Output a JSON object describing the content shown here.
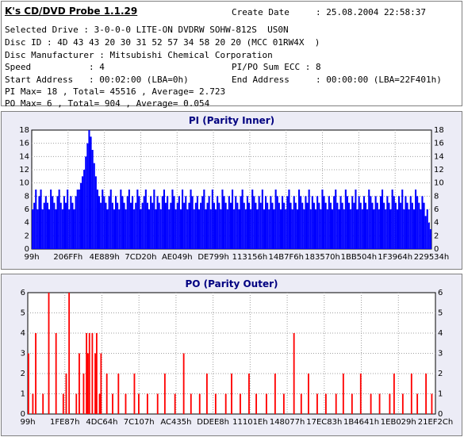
{
  "app": {
    "title": "K's CD/DVD Probe 1.1.29"
  },
  "info": {
    "create_date": "Create Date     : 25.08.2004 22:58:37",
    "drive": "Selected Drive : 3-0-0-0 LITE-ON DVDRW SOHW-812S  US0N",
    "disc_id": "Disc ID : 4D 43 43 20 30 31 52 57 34 58 20 20 (MCC 01RW4X  )",
    "manufacturer": "Disc Manufacturer : Mitsubishi Chemical Corporation",
    "speed": "Speed           : 4",
    "sum_ecc": "PI/PO Sum ECC : 8",
    "start_address": "Start Address   : 00:02:00 (LBA=0h)",
    "end_address": "End Address     : 00:00:00 (LBA=22F401h)",
    "pi_summary": "PI Max= 18 , Total= 45516 , Average= 2.723",
    "po_summary": "PO Max= 6 , Total= 904 , Average= 0.054"
  },
  "colors": {
    "pi": "#0000ff",
    "po": "#ff0000",
    "panel": "#ececf6",
    "title": "#000080"
  },
  "chart_data": [
    {
      "type": "bar",
      "title": "PI (Parity Inner)",
      "ylim": [
        0,
        18
      ],
      "yticks": [
        0,
        2,
        4,
        6,
        8,
        10,
        12,
        14,
        16,
        18
      ],
      "xticks": [
        "99h",
        "206FFh",
        "4E889h",
        "7CD20h",
        "AE049h",
        "DE799h",
        "113156h",
        "14B7F6h",
        "183570h",
        "1BB504h",
        "1F3964h",
        "229534h"
      ],
      "grid": true,
      "series": [
        {
          "values": [
            6,
            7,
            9,
            6,
            8,
            9,
            6,
            7,
            8,
            7,
            6,
            9,
            8,
            7,
            6,
            8,
            9,
            7,
            6,
            8,
            7,
            9,
            6,
            8,
            7,
            6,
            8,
            9,
            9,
            10,
            11,
            12,
            14,
            16,
            18,
            17,
            15,
            13,
            11,
            9,
            8,
            7,
            9,
            8,
            7,
            6,
            8,
            9,
            7,
            6,
            8,
            7,
            6,
            9,
            8,
            7,
            6,
            8,
            9,
            7,
            8,
            6,
            7,
            9,
            8,
            6,
            7,
            8,
            9,
            7,
            6,
            8,
            7,
            9,
            6,
            8,
            7,
            6,
            8,
            9,
            7,
            8,
            6,
            7,
            9,
            8,
            6,
            7,
            8,
            6,
            9,
            7,
            8,
            6,
            7,
            9,
            8,
            6,
            7,
            8,
            6,
            7,
            8,
            9,
            6,
            7,
            8,
            6,
            9,
            7,
            6,
            8,
            7,
            6,
            9,
            8,
            7,
            6,
            8,
            7,
            9,
            6,
            8,
            7,
            6,
            8,
            9,
            7,
            6,
            8,
            7,
            6,
            9,
            8,
            7,
            6,
            8,
            7,
            9,
            6,
            8,
            7,
            6,
            8,
            7,
            6,
            9,
            8,
            7,
            6,
            8,
            7,
            6,
            8,
            9,
            7,
            6,
            8,
            7,
            6,
            9,
            8,
            7,
            6,
            8,
            7,
            9,
            6,
            8,
            7,
            6,
            8,
            7,
            6,
            9,
            8,
            7,
            6,
            8,
            7,
            6,
            8,
            9,
            7,
            6,
            8,
            7,
            6,
            9,
            8,
            7,
            6,
            8,
            7,
            9,
            6,
            8,
            7,
            6,
            8,
            7,
            6,
            9,
            8,
            7,
            6,
            8,
            7,
            6,
            8,
            9,
            7,
            6,
            8,
            7,
            6,
            9,
            8,
            7,
            6,
            8,
            7,
            9,
            6,
            8,
            7,
            6,
            8,
            7,
            6,
            9,
            8,
            7,
            6,
            8,
            7,
            5,
            6,
            4,
            3
          ]
        }
      ]
    },
    {
      "type": "bar",
      "title": "PO (Parity Outer)",
      "ylim": [
        0,
        6
      ],
      "yticks": [
        0,
        1,
        2,
        3,
        4,
        5,
        6
      ],
      "xticks": [
        "99h",
        "1FE87h",
        "4DC64h",
        "7C107h",
        "AC435h",
        "DDEE8h",
        "11101Eh",
        "148077h",
        "17EC83h",
        "1B4641h",
        "1EB029h",
        "21EF2Ch"
      ],
      "grid": true,
      "series": [
        {
          "values": [
            3,
            0,
            0,
            1,
            0,
            4,
            0,
            0,
            0,
            0,
            1,
            0,
            0,
            0,
            6,
            0,
            0,
            0,
            0,
            4,
            0,
            0,
            0,
            0,
            1,
            0,
            2,
            0,
            6,
            0,
            0,
            0,
            0,
            1,
            0,
            3,
            0,
            0,
            2,
            0,
            4,
            3,
            4,
            0,
            4,
            0,
            3,
            4,
            0,
            1,
            3,
            0,
            0,
            0,
            2,
            0,
            0,
            0,
            1,
            0,
            0,
            0,
            2,
            0,
            0,
            0,
            0,
            1,
            0,
            0,
            0,
            0,
            0,
            2,
            0,
            0,
            1,
            0,
            0,
            0,
            0,
            0,
            1,
            0,
            0,
            0,
            0,
            0,
            0,
            1,
            0,
            0,
            0,
            0,
            2,
            0,
            0,
            0,
            0,
            0,
            0,
            1,
            0,
            0,
            0,
            0,
            0,
            3,
            0,
            0,
            0,
            0,
            1,
            0,
            0,
            0,
            0,
            0,
            1,
            0,
            0,
            0,
            0,
            2,
            0,
            0,
            0,
            0,
            0,
            1,
            0,
            0,
            0,
            0,
            0,
            0,
            1,
            0,
            0,
            0,
            2,
            0,
            0,
            0,
            0,
            0,
            1,
            0,
            0,
            0,
            0,
            0,
            2,
            0,
            0,
            0,
            0,
            1,
            0,
            0,
            0,
            0,
            0,
            0,
            1,
            0,
            0,
            0,
            0,
            0,
            2,
            0,
            0,
            0,
            0,
            0,
            1,
            0,
            0,
            0,
            0,
            0,
            0,
            4,
            0,
            0,
            0,
            0,
            1,
            0,
            0,
            0,
            0,
            2,
            0,
            0,
            0,
            0,
            0,
            1,
            0,
            0,
            0,
            0,
            0,
            1,
            0,
            0,
            0,
            0,
            0,
            0,
            1,
            0,
            0,
            0,
            0,
            2,
            0,
            0,
            0,
            0,
            0,
            1,
            0,
            0,
            0,
            0,
            0,
            2,
            0,
            0,
            0,
            0,
            0,
            0,
            1,
            0,
            0,
            0,
            0,
            0,
            1,
            0,
            0,
            0,
            0,
            0,
            0,
            1,
            0,
            0,
            2,
            0,
            0,
            0,
            0,
            0,
            1,
            0,
            0,
            0,
            0,
            0,
            2,
            0,
            0,
            0,
            1,
            0,
            0,
            0,
            0,
            0,
            2,
            0,
            0,
            0,
            1,
            0,
            0
          ]
        }
      ]
    }
  ]
}
